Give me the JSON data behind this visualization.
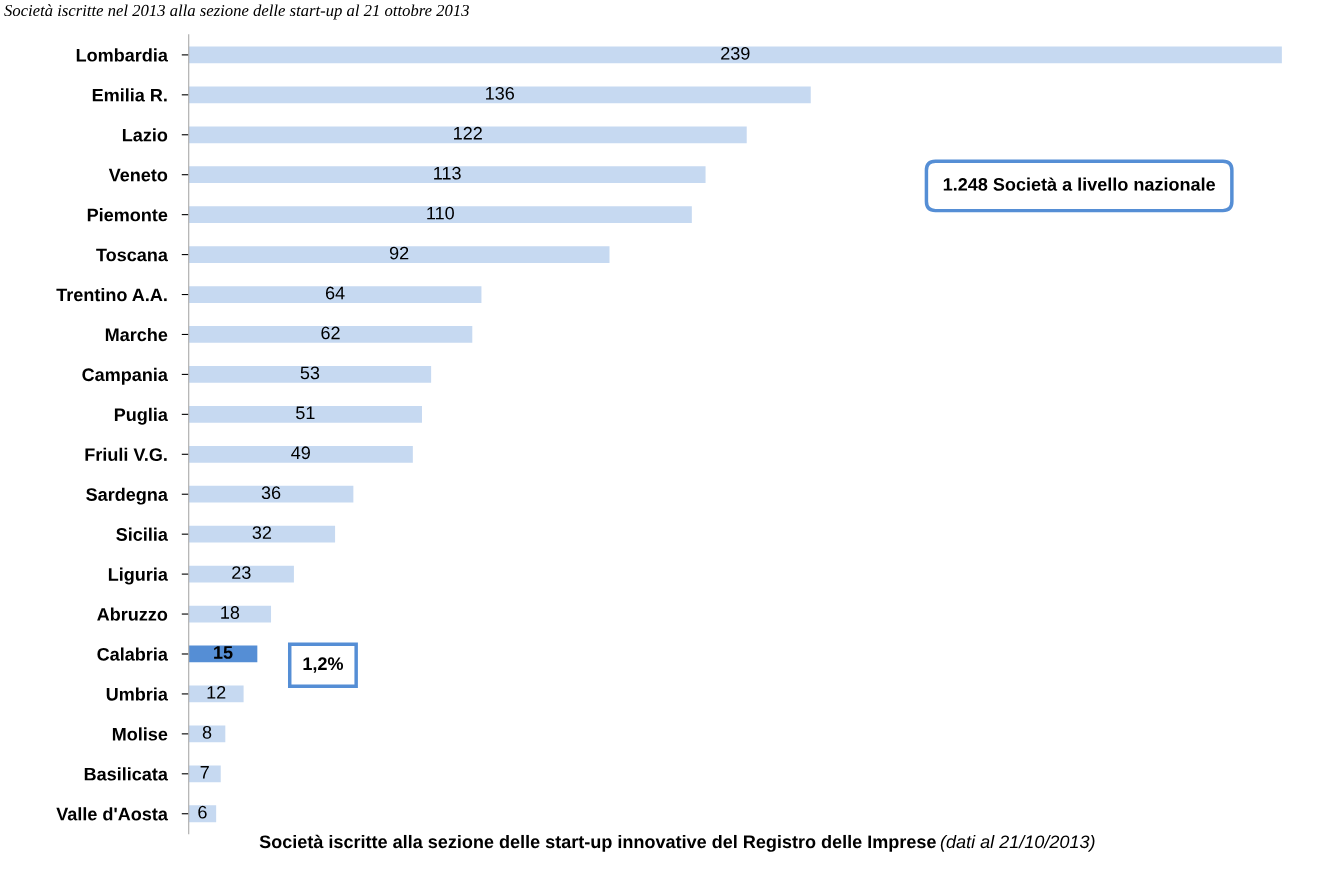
{
  "chart_data": {
    "type": "bar",
    "orientation": "horizontal",
    "title": "Società iscritte nel 2013 alla sezione delle start-up al 21 ottobre 2013",
    "categories": [
      "Lombardia",
      "Emilia R.",
      "Lazio",
      "Veneto",
      "Piemonte",
      "Toscana",
      "Trentino A.A.",
      "Marche",
      "Campania",
      "Puglia",
      "Friuli V.G.",
      "Sardegna",
      "Sicilia",
      "Liguria",
      "Abruzzo",
      "Calabria",
      "Umbria",
      "Molise",
      "Basilicata",
      "Valle d'Aosta"
    ],
    "values": [
      239,
      136,
      122,
      113,
      110,
      92,
      64,
      62,
      53,
      51,
      49,
      36,
      32,
      23,
      18,
      15,
      12,
      8,
      7,
      6
    ],
    "colors": [
      "#c6d9f1",
      "#c6d9f1",
      "#c6d9f1",
      "#c6d9f1",
      "#c6d9f1",
      "#c6d9f1",
      "#c6d9f1",
      "#c6d9f1",
      "#c6d9f1",
      "#c6d9f1",
      "#c6d9f1",
      "#c6d9f1",
      "#c6d9f1",
      "#c6d9f1",
      "#c6d9f1",
      "#558ed5",
      "#c6d9f1",
      "#c6d9f1",
      "#c6d9f1",
      "#c6d9f1"
    ],
    "data_labels": true,
    "grid": false,
    "legend": false,
    "annotations": [
      "1.248 Società a livello nazionale",
      "1,2%",
      "Società iscritte alla sezione delle start-up innovative del Registro delle Imprese",
      "(dati al 21/10/2013)"
    ]
  }
}
